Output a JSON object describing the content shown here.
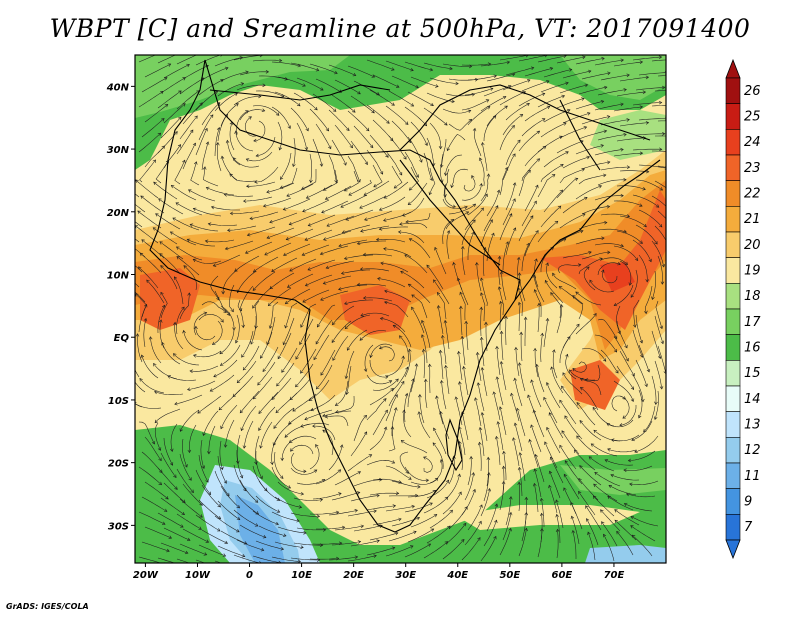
{
  "title": "WBPT [C] and Sreamline at 500hPa, VT: 2017091400",
  "credit": "GrADS: IGES/COLA",
  "map": {
    "lon_range": [
      -22,
      80
    ],
    "lat_range": [
      -36,
      45
    ],
    "lon_ticks": [
      {
        "lon": -20,
        "label": "20W"
      },
      {
        "lon": -10,
        "label": "10W"
      },
      {
        "lon": 0,
        "label": "0"
      },
      {
        "lon": 10,
        "label": "10E"
      },
      {
        "lon": 20,
        "label": "20E"
      },
      {
        "lon": 30,
        "label": "30E"
      },
      {
        "lon": 40,
        "label": "40E"
      },
      {
        "lon": 50,
        "label": "50E"
      },
      {
        "lon": 60,
        "label": "60E"
      },
      {
        "lon": 70,
        "label": "70E"
      }
    ],
    "lat_ticks": [
      {
        "lat": 40,
        "label": "40N"
      },
      {
        "lat": 30,
        "label": "30N"
      },
      {
        "lat": 20,
        "label": "20N"
      },
      {
        "lat": 10,
        "label": "10N"
      },
      {
        "lat": 0,
        "label": "EQ"
      },
      {
        "lat": -10,
        "label": "10S"
      },
      {
        "lat": -20,
        "label": "20S"
      },
      {
        "lat": -30,
        "label": "30S"
      }
    ]
  },
  "colorbar": {
    "labels": [
      "26",
      "25",
      "24",
      "23",
      "22",
      "21",
      "20",
      "19",
      "18",
      "17",
      "16",
      "15",
      "14",
      "13",
      "12",
      "11",
      "9",
      "7"
    ],
    "colors": [
      "#a01010",
      "#c81c14",
      "#e8401e",
      "#f06428",
      "#f08c28",
      "#f4ac3c",
      "#f8cc6c",
      "#fae8a0",
      "#a8e080",
      "#78d060",
      "#4cbc48",
      "#c8f0c0",
      "#e8fcf8",
      "#c0e4fc",
      "#94cced",
      "#6cb0e8",
      "#4494e0",
      "#2874d8"
    ],
    "top_cap": "#a01010",
    "bottom_cap": "#2874d8"
  },
  "colors": {
    "frame": "#000000",
    "streamline": "#1e1e1e",
    "coast": "#000000"
  }
}
